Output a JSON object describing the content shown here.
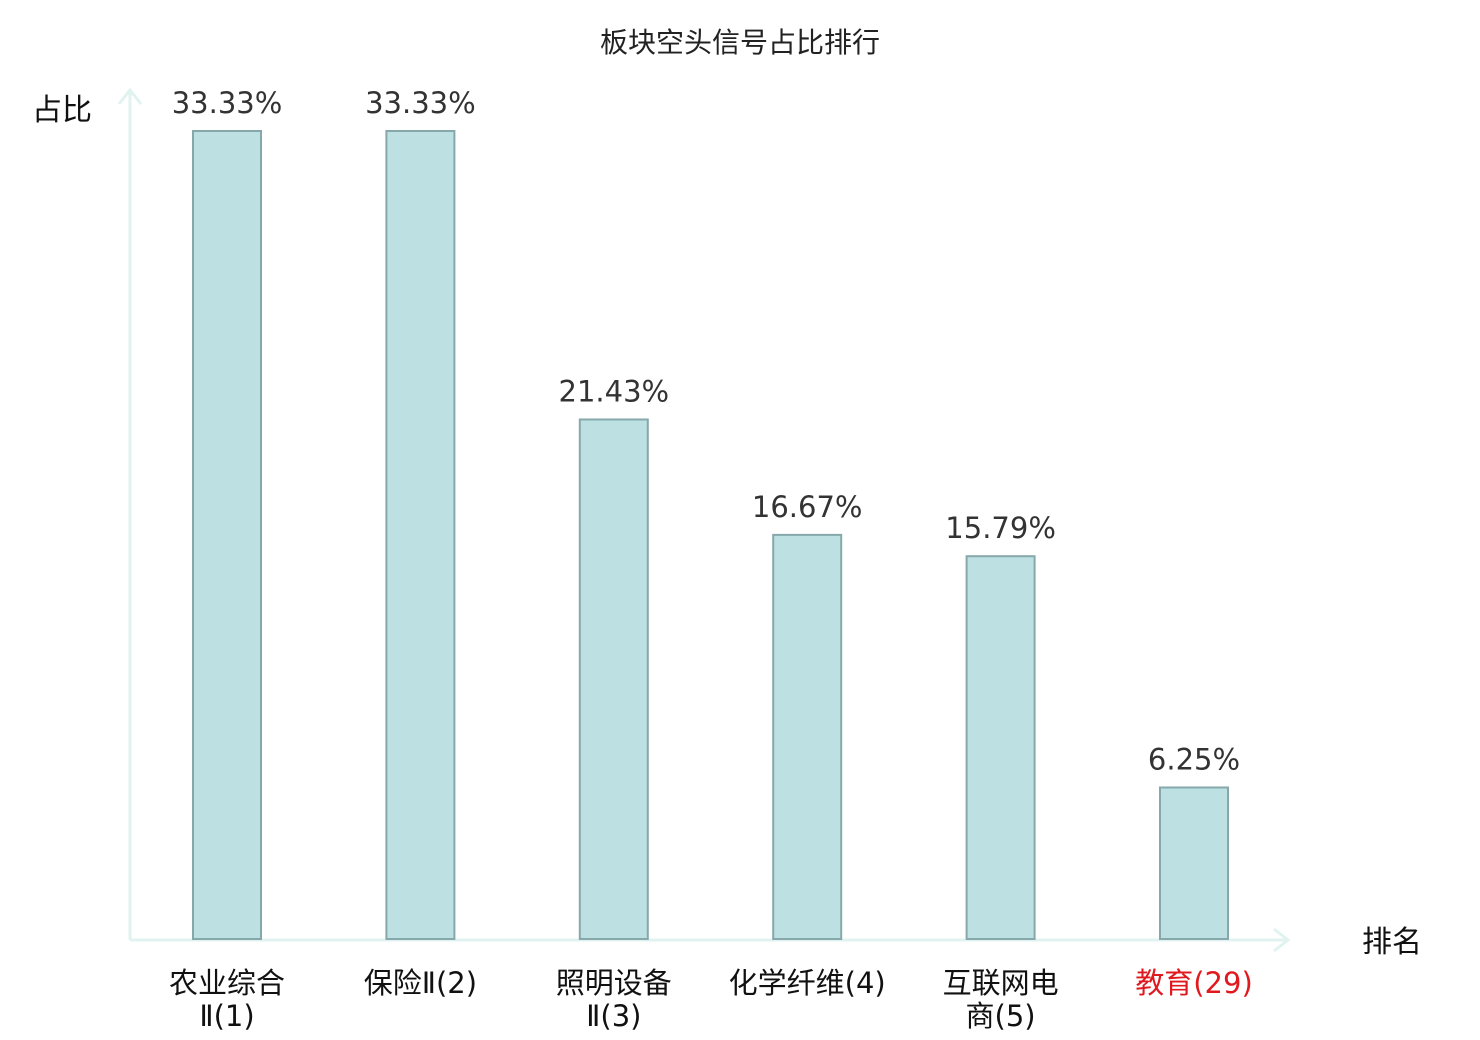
{
  "chart_data": {
    "type": "bar",
    "title": "板块空头信号占比排行",
    "ylabel": "占比",
    "xlabel": "排名",
    "categories": [
      {
        "lines": [
          "农业综合",
          "Ⅱ(1)"
        ],
        "highlight": false
      },
      {
        "lines": [
          "保险Ⅱ(2)"
        ],
        "highlight": false
      },
      {
        "lines": [
          "照明设备",
          "Ⅱ(3)"
        ],
        "highlight": false
      },
      {
        "lines": [
          "化学纤维(4)"
        ],
        "highlight": false
      },
      {
        "lines": [
          "互联网电",
          "商(5)"
        ],
        "highlight": false
      },
      {
        "lines": [
          "教育(29)"
        ],
        "highlight": true
      }
    ],
    "values": [
      33.33,
      33.33,
      21.43,
      16.67,
      15.79,
      6.25
    ],
    "value_labels": [
      "33.33%",
      "33.33%",
      "21.43%",
      "16.67%",
      "15.79%",
      "6.25%"
    ],
    "ylim": [
      0,
      33.33
    ],
    "grid": false,
    "colors": {
      "bar_fill": "#bde0e3",
      "bar_stroke": "#86a8ab",
      "axis": "#e0f3f0",
      "highlight_text": "#e0191f"
    }
  }
}
